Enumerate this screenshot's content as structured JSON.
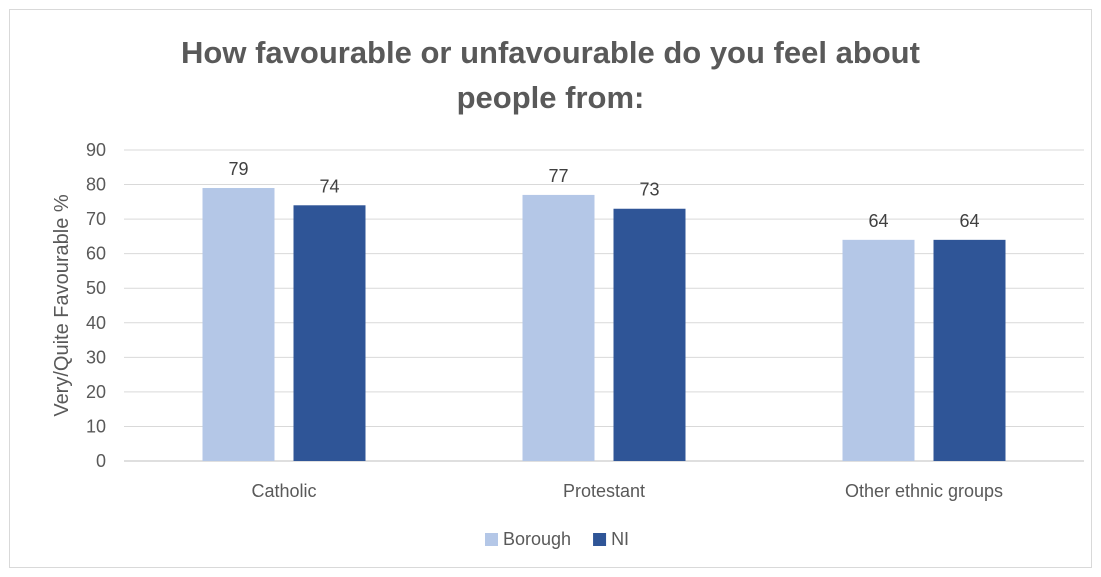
{
  "chart_data": {
    "type": "bar",
    "title_line1": "How favourable or unfavourable do you feel about",
    "title_line2": "people from:",
    "ylabel": "Very/Quite Favourable %",
    "xlabel": "",
    "ylim": [
      0,
      90
    ],
    "yticks": [
      0,
      10,
      20,
      30,
      40,
      50,
      60,
      70,
      80,
      90
    ],
    "categories": [
      "Catholic",
      "Protestant",
      "Other ethnic groups"
    ],
    "series": [
      {
        "name": "Borough",
        "values": [
          79,
          77,
          64
        ],
        "color": "#b4c7e7"
      },
      {
        "name": "NI",
        "values": [
          74,
          73,
          64
        ],
        "color": "#2f5597"
      }
    ],
    "grid": true,
    "legend_position": "bottom"
  }
}
